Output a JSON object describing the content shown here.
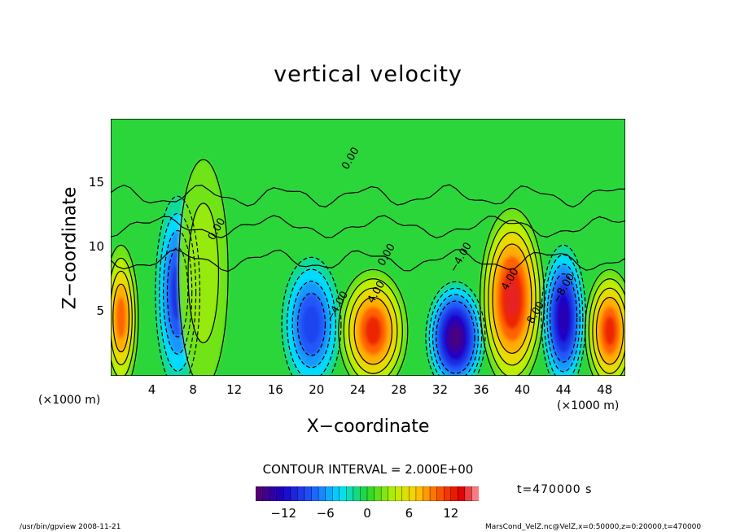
{
  "chart_data": {
    "type": "heatmap",
    "title": "vertical velocity",
    "xlabel": "X−coordinate",
    "ylabel": "Z−coordinate",
    "x_unit": "(×1000 m)",
    "y_unit": "(×1000 m)",
    "x_ticks": [
      4,
      8,
      12,
      16,
      20,
      24,
      28,
      32,
      36,
      40,
      44,
      48
    ],
    "y_ticks": [
      5,
      10,
      15
    ],
    "xlim": [
      0,
      50
    ],
    "ylim": [
      0,
      20
    ],
    "contour_interval": "CONTOUR INTERVAL = 2.000E+00",
    "time": "t=470000 s",
    "colorbar": {
      "ticks": [
        "−12",
        "−6",
        "0",
        "6",
        "12"
      ],
      "range": [
        -16,
        16
      ]
    },
    "contour_labels": [
      "0.00",
      "4.00",
      "−4.00",
      "8.00",
      "−8.00"
    ],
    "cells": [
      {
        "x": 1.0,
        "z": 4.5,
        "w": 0.7,
        "value": 10
      },
      {
        "x": 6.5,
        "z": 6.5,
        "w": 0.9,
        "value": -10
      },
      {
        "x": 9.0,
        "z": 8.0,
        "w": 1.0,
        "value": 3
      },
      {
        "x": 19.5,
        "z": 4.0,
        "w": 1.2,
        "value": -9
      },
      {
        "x": 25.5,
        "z": 3.5,
        "w": 1.4,
        "value": 12
      },
      {
        "x": 33.5,
        "z": 3.0,
        "w": 1.2,
        "value": -15
      },
      {
        "x": 39.0,
        "z": 6.0,
        "w": 1.3,
        "value": 14
      },
      {
        "x": 44.0,
        "z": 4.5,
        "w": 0.9,
        "value": -13
      },
      {
        "x": 48.5,
        "z": 3.5,
        "w": 1.0,
        "value": 12
      }
    ]
  },
  "footer": {
    "left": "/usr/bin/gpview   2008-11-21",
    "right": "MarsCond_VelZ.nc@VelZ,x=0:50000,z=0:20000,t=470000"
  },
  "colors": {
    "background": "#1ad21a",
    "frame": "#000000"
  }
}
